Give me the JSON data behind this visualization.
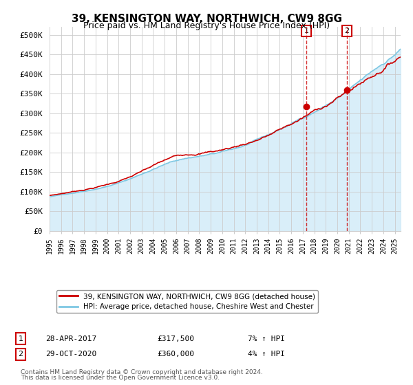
{
  "title": "39, KENSINGTON WAY, NORTHWICH, CW9 8GG",
  "subtitle": "Price paid vs. HM Land Registry's House Price Index (HPI)",
  "ylabel": "",
  "xlim_start": 1995.0,
  "xlim_end": 2025.5,
  "ylim": [
    0,
    520000
  ],
  "yticks": [
    0,
    50000,
    100000,
    150000,
    200000,
    250000,
    300000,
    350000,
    400000,
    450000,
    500000
  ],
  "ytick_labels": [
    "£0",
    "£50K",
    "£100K",
    "£150K",
    "£200K",
    "£250K",
    "£300K",
    "£350K",
    "£400K",
    "£450K",
    "£500K"
  ],
  "transaction1_date": 2017.32,
  "transaction1_price": 317500,
  "transaction1_label": "1",
  "transaction1_text": "28-APR-2017    £317,500    7% ↑ HPI",
  "transaction2_date": 2020.83,
  "transaction2_price": 360000,
  "transaction2_label": "2",
  "transaction2_text": "29-OCT-2020    £360,000    4% ↑ HPI",
  "legend_line1": "39, KENSINGTON WAY, NORTHWICH, CW9 8GG (detached house)",
  "legend_line2": "HPI: Average price, detached house, Cheshire West and Chester",
  "footer1": "Contains HM Land Registry data © Crown copyright and database right 2024.",
  "footer2": "This data is licensed under the Open Government Licence v3.0.",
  "hpi_color": "#7ec8e3",
  "price_color": "#cc0000",
  "shading_color": "#d0eaf8",
  "marker_color": "#cc0000",
  "vline_color": "#cc0000",
  "background_color": "#ffffff"
}
